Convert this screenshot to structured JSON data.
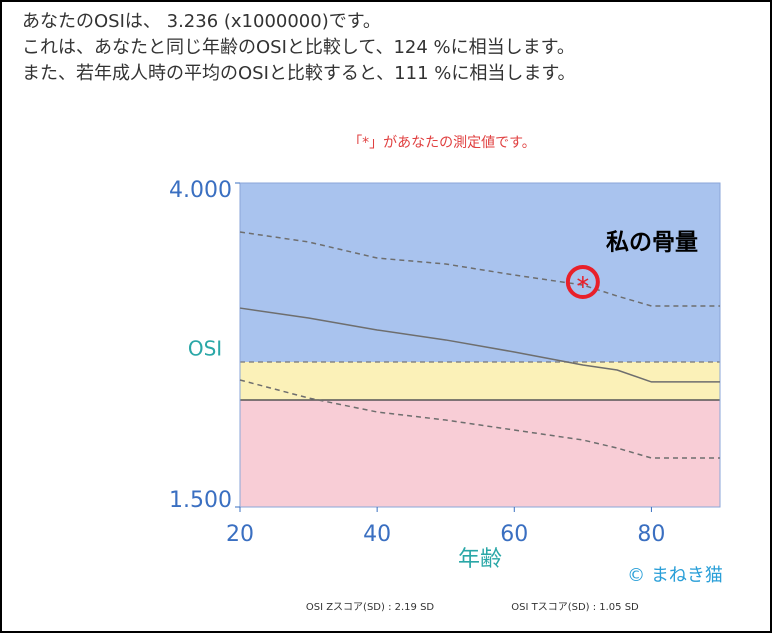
{
  "header": {
    "lines": [
      "あなたのOSIは、 3.236 (x1000000)です。",
      "これは、あなたと同じ年齢のOSIと比較して、124 %に相当します。",
      "また、若年成人時の平均のOSIと比較すると、111 %に相当します。"
    ]
  },
  "watermark": "© まねき猫",
  "footer": [
    "OSI Zスコア(SD) : 2.19  SD",
    "OSI Tスコア(SD) : 1.05  SD"
  ],
  "chart_data": {
    "type": "line",
    "subtitle": "「*」があなたの測定値です。",
    "y_label": "OSI",
    "x_label": "年齢",
    "annotation": "私の骨量",
    "xlim": [
      20,
      90
    ],
    "ylim": [
      1.5,
      4
    ],
    "xticks": [
      20,
      40,
      60,
      80
    ],
    "yticks": [
      {
        "value": 4,
        "label": "4.000"
      },
      {
        "value": 1.5,
        "label": "1.500"
      }
    ],
    "bands": [
      {
        "color": "#a9c3ee",
        "range": [
          2.619,
          4
        ]
      },
      {
        "color": "#fbf1b8",
        "range": [
          2.326,
          2.619
        ]
      },
      {
        "color": "#f8cdd6",
        "range": [
          1.5,
          2.326
        ]
      }
    ],
    "x": [
      20,
      30,
      40,
      50,
      60,
      70,
      75,
      80,
      90
    ],
    "series": [
      {
        "color": "#6e6e6e",
        "dashed": false,
        "values": [
          3.035,
          2.958,
          2.866,
          2.789,
          2.696,
          2.596,
          2.557,
          2.465,
          2.465
        ]
      },
      {
        "color": "#6e6e6e",
        "dashed": true,
        "values": [
          3.622,
          3.545,
          3.421,
          3.375,
          3.29,
          3.213,
          3.128,
          3.051,
          3.051
        ]
      },
      {
        "color": "#6e6e6e",
        "dashed": true,
        "values": [
          2.48,
          2.341,
          2.233,
          2.171,
          2.094,
          2.017,
          1.955,
          1.878,
          1.878
        ]
      }
    ],
    "point": {
      "x": 70,
      "y": 3.236,
      "color": "#e8202a"
    }
  }
}
